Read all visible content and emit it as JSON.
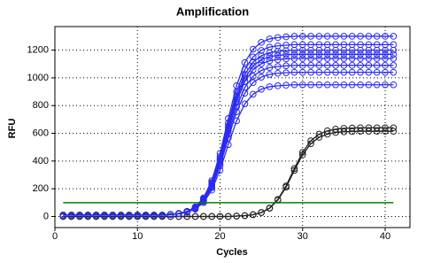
{
  "chart_data": {
    "type": "line",
    "title": "Amplification",
    "xlabel": "Cycles",
    "ylabel": "RFU",
    "x": [
      1,
      2,
      3,
      4,
      5,
      6,
      7,
      8,
      9,
      10,
      11,
      12,
      13,
      14,
      15,
      16,
      17,
      18,
      19,
      20,
      21,
      22,
      23,
      24,
      25,
      26,
      27,
      28,
      29,
      30,
      31,
      32,
      33,
      34,
      35,
      36,
      37,
      38,
      39,
      40,
      41
    ],
    "xlim": [
      0,
      43
    ],
    "xticks": [
      0,
      10,
      20,
      30,
      40
    ],
    "ylim": [
      -80,
      1370
    ],
    "yticks": [
      0,
      200,
      400,
      600,
      800,
      1000,
      1200
    ],
    "grid": true,
    "markers": true,
    "threshold": {
      "value": 100,
      "color": "#008000"
    },
    "series": [
      {
        "color": "#222222",
        "values": [
          0,
          0,
          0,
          0,
          0,
          0,
          0,
          0,
          0,
          0,
          0,
          0,
          0,
          0,
          0,
          0,
          0,
          0,
          0,
          0,
          0,
          3,
          6,
          13,
          29,
          61,
          123,
          221,
          346,
          463,
          546,
          594,
          618,
          630,
          636,
          638,
          640,
          640,
          640,
          640,
          640
        ]
      },
      {
        "color": "#222222",
        "values": [
          0,
          0,
          0,
          0,
          0,
          0,
          0,
          0,
          0,
          0,
          0,
          0,
          0,
          0,
          0,
          0,
          0,
          0,
          0,
          0,
          0,
          3,
          6,
          13,
          28,
          59,
          118,
          212,
          332,
          445,
          525,
          571,
          594,
          606,
          611,
          613,
          615,
          615,
          615,
          615,
          615
        ]
      },
      {
        "color": "#2b2bf0",
        "values": [
          10,
          10,
          10,
          10,
          10,
          10,
          10,
          10,
          10,
          10,
          10,
          10,
          10,
          15,
          22,
          37,
          69,
          134,
          258,
          455,
          707,
          943,
          1110,
          1207,
          1256,
          1281,
          1291,
          1296,
          1300,
          1300,
          1300,
          1300,
          1300,
          1300,
          1300,
          1300,
          1300,
          1300,
          1300,
          1300,
          1300
        ]
      },
      {
        "color": "#2b2bf0",
        "values": [
          10,
          10,
          10,
          10,
          10,
          10,
          10,
          10,
          10,
          10,
          10,
          10,
          10,
          15,
          22,
          36,
          67,
          128,
          246,
          434,
          674,
          899,
          1059,
          1151,
          1198,
          1222,
          1231,
          1236,
          1240,
          1240,
          1240,
          1240,
          1240,
          1240,
          1240,
          1240,
          1240,
          1240,
          1240,
          1240,
          1240
        ]
      },
      {
        "color": "#2b2bf0",
        "values": [
          10,
          10,
          10,
          10,
          10,
          10,
          10,
          10,
          10,
          10,
          10,
          10,
          10,
          15,
          21,
          35,
          65,
          124,
          238,
          421,
          653,
          870,
          1025,
          1114,
          1160,
          1182,
          1192,
          1196,
          1200,
          1200,
          1200,
          1200,
          1200,
          1200,
          1200,
          1200,
          1200,
          1200,
          1200,
          1200,
          1200
        ]
      },
      {
        "color": "#2b2bf0",
        "values": [
          10,
          10,
          10,
          10,
          10,
          10,
          10,
          10,
          10,
          10,
          10,
          10,
          10,
          15,
          21,
          34,
          63,
          121,
          233,
          410,
          636,
          849,
          999,
          1086,
          1131,
          1153,
          1162,
          1167,
          1170,
          1170,
          1170,
          1170,
          1170,
          1170,
          1170,
          1170,
          1170,
          1170,
          1170,
          1170,
          1170
        ]
      },
      {
        "color": "#2b2bf0",
        "values": [
          10,
          10,
          10,
          10,
          10,
          10,
          10,
          10,
          10,
          10,
          10,
          10,
          10,
          15,
          21,
          34,
          62,
          118,
          227,
          400,
          620,
          827,
          974,
          1059,
          1102,
          1123,
          1132,
          1137,
          1140,
          1140,
          1140,
          1140,
          1140,
          1140,
          1140,
          1140,
          1140,
          1140,
          1140,
          1140,
          1140
        ]
      },
      {
        "color": "#2b2bf0",
        "values": [
          10,
          10,
          10,
          10,
          10,
          10,
          10,
          10,
          10,
          10,
          10,
          10,
          10,
          15,
          20,
          33,
          60,
          114,
          217,
          383,
          593,
          791,
          931,
          1012,
          1053,
          1074,
          1082,
          1087,
          1090,
          1090,
          1090,
          1090,
          1090,
          1090,
          1090,
          1090,
          1090,
          1090,
          1090,
          1090,
          1090
        ]
      },
      {
        "color": "#2b2bf0",
        "values": [
          10,
          10,
          10,
          10,
          10,
          10,
          10,
          10,
          10,
          10,
          10,
          10,
          10,
          14,
          20,
          32,
          57,
          109,
          208,
          365,
          566,
          755,
          889,
          966,
          1005,
          1025,
          1033,
          1037,
          1040,
          1040,
          1040,
          1040,
          1040,
          1040,
          1040,
          1040,
          1040,
          1040,
          1040,
          1040,
          1040
        ]
      },
      {
        "color": "#2b2bf0",
        "values": [
          10,
          10,
          10,
          10,
          10,
          10,
          10,
          10,
          10,
          10,
          10,
          10,
          10,
          14,
          19,
          30,
          53,
          100,
          190,
          334,
          518,
          690,
          812,
          882,
          918,
          936,
          943,
          947,
          950,
          950,
          950,
          950,
          950,
          950,
          950,
          950,
          950,
          950,
          950,
          950,
          950
        ]
      }
    ]
  }
}
